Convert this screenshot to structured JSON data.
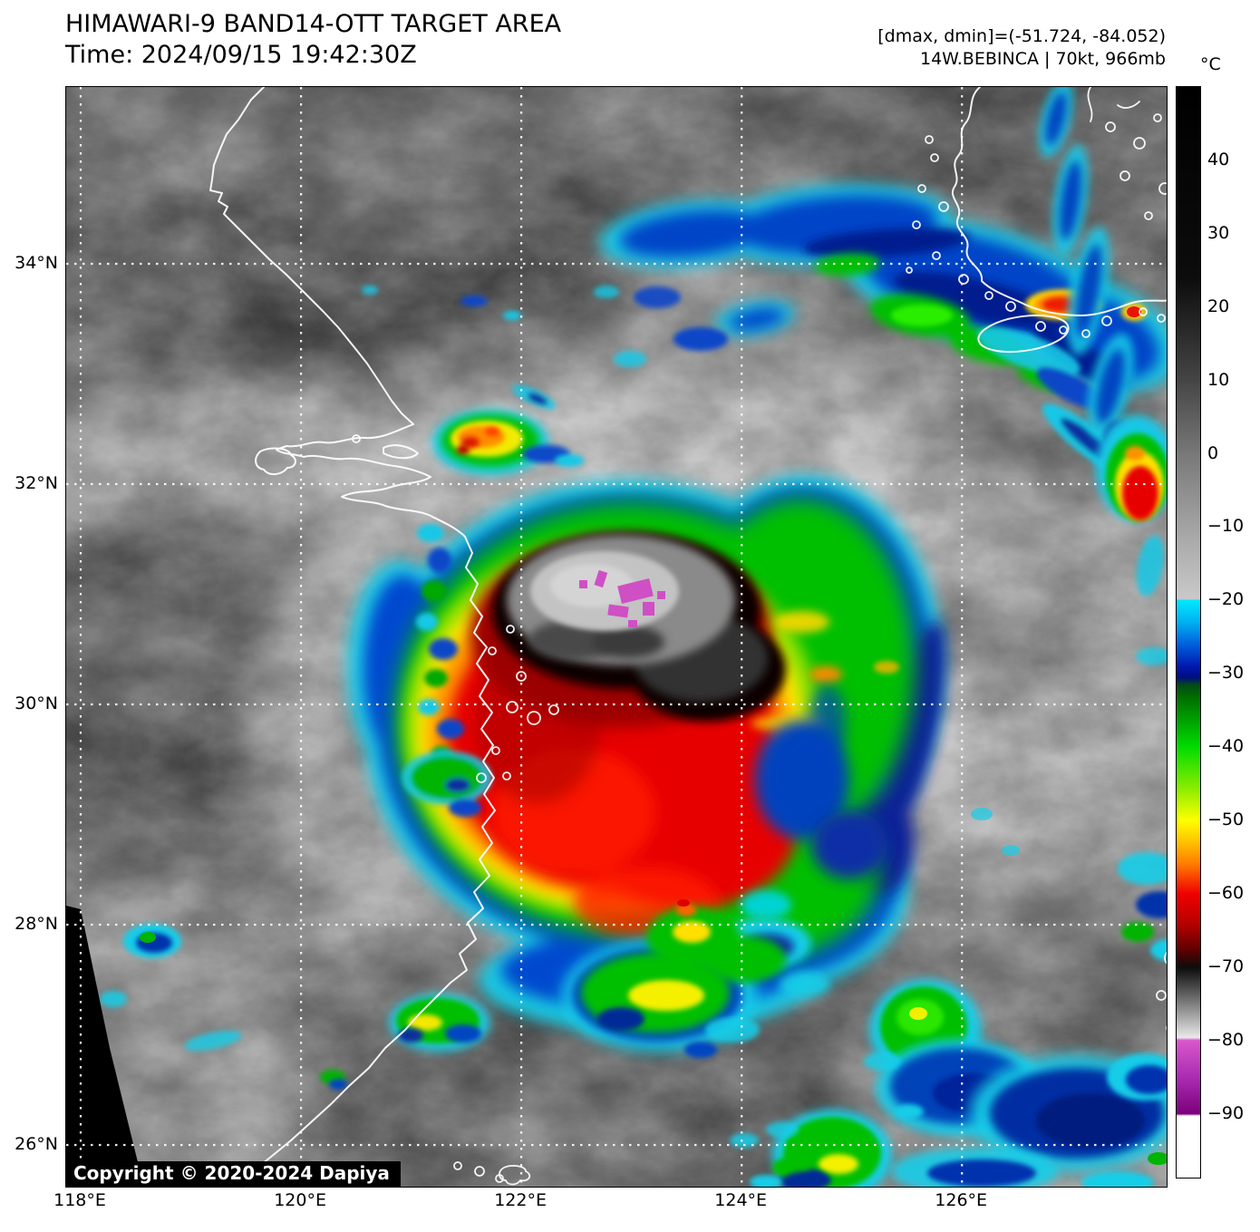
{
  "header": {
    "title": "HIMAWARI-9 BAND14-OTT TARGET AREA",
    "time_line": "Time: 2024/09/15 19:42:30Z",
    "dmax_dmin": "[dmax, dmin]=(-51.724, -84.052)",
    "storm_info": "14W.BEBINCA | 70kt, 966mb"
  },
  "map": {
    "copyright": "Copyright © 2020-2024 Dapiya",
    "extent": {
      "lon_min": 117.868,
      "lon_max": 127.858,
      "lat_min": 25.621,
      "lat_max": 35.605
    },
    "lat_ticks": [
      {
        "label": "34°N",
        "value": 34
      },
      {
        "label": "32°N",
        "value": 32
      },
      {
        "label": "30°N",
        "value": 30
      },
      {
        "label": "28°N",
        "value": 28
      },
      {
        "label": "26°N",
        "value": 26
      }
    ],
    "lon_ticks": [
      {
        "label": "118°E",
        "value": 118
      },
      {
        "label": "120°E",
        "value": 120
      },
      {
        "label": "122°E",
        "value": 122
      },
      {
        "label": "124°E",
        "value": 124
      },
      {
        "label": "126°E",
        "value": 126
      }
    ]
  },
  "colorbar": {
    "unit": "°C",
    "vmax": 50,
    "vmin": -98.7,
    "ticks": [
      {
        "label": "40",
        "value": 40
      },
      {
        "label": "30",
        "value": 30
      },
      {
        "label": "20",
        "value": 20
      },
      {
        "label": "10",
        "value": 10
      },
      {
        "label": "0",
        "value": 0
      },
      {
        "label": "−10",
        "value": -10
      },
      {
        "label": "−20",
        "value": -20
      },
      {
        "label": "−30",
        "value": -30
      },
      {
        "label": "−40",
        "value": -40
      },
      {
        "label": "−50",
        "value": -50
      },
      {
        "label": "−60",
        "value": -60
      },
      {
        "label": "−70",
        "value": -70
      },
      {
        "label": "−80",
        "value": -80
      },
      {
        "label": "−90",
        "value": -90
      }
    ],
    "stops": [
      {
        "value": 50,
        "color": "#000000"
      },
      {
        "value": 24,
        "color": "#0c0c0c"
      },
      {
        "value": 10,
        "color": "#454545"
      },
      {
        "value": 0,
        "color": "#787878"
      },
      {
        "value": -10,
        "color": "#a3a3a3"
      },
      {
        "value": -19.8,
        "color": "#c9c9c9"
      },
      {
        "value": -20,
        "color": "#00e8ff"
      },
      {
        "value": -23,
        "color": "#00b0f2"
      },
      {
        "value": -26,
        "color": "#0060dd"
      },
      {
        "value": -29,
        "color": "#0018b0"
      },
      {
        "value": -30.5,
        "color": "#000d80"
      },
      {
        "value": -31.5,
        "color": "#04491a"
      },
      {
        "value": -33,
        "color": "#006b00"
      },
      {
        "value": -40,
        "color": "#00dc00"
      },
      {
        "value": -46,
        "color": "#95ee00"
      },
      {
        "value": -50,
        "color": "#ffff00"
      },
      {
        "value": -53,
        "color": "#ffc000"
      },
      {
        "value": -56,
        "color": "#ff7a00"
      },
      {
        "value": -60,
        "color": "#f00000"
      },
      {
        "value": -64,
        "color": "#b80000"
      },
      {
        "value": -68,
        "color": "#560000"
      },
      {
        "value": -70,
        "color": "#0d0d0d"
      },
      {
        "value": -70.5,
        "color": "#161616"
      },
      {
        "value": -79.6,
        "color": "#e9e9e9"
      },
      {
        "value": -80,
        "color": "#d957cc"
      },
      {
        "value": -85,
        "color": "#ab2cb2"
      },
      {
        "value": -90,
        "color": "#7c007c"
      },
      {
        "value": -90.3,
        "color": "#ffffff"
      },
      {
        "value": -98.7,
        "color": "#ffffff"
      }
    ]
  }
}
